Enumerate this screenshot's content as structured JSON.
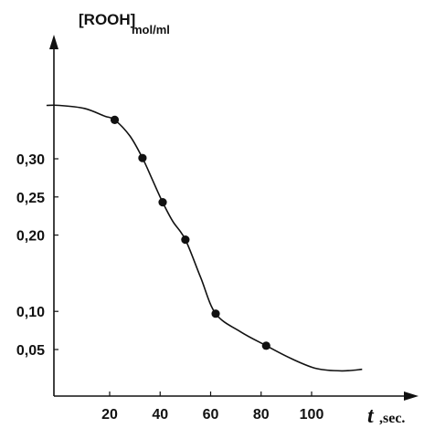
{
  "chart_data": {
    "type": "line",
    "ylabel": {
      "main": "[ROOH]",
      "unit": "mol/ml"
    },
    "xlabel": {
      "main": "t",
      "unit": ",sec."
    },
    "x_ticks": [
      {
        "value": 20,
        "label": "20"
      },
      {
        "value": 40,
        "label": "40"
      },
      {
        "value": 60,
        "label": "60"
      },
      {
        "value": 80,
        "label": "80"
      },
      {
        "value": 100,
        "label": "100"
      }
    ],
    "y_ticks": [
      {
        "value": 0.05,
        "label": "0,05"
      },
      {
        "value": 0.1,
        "label": "0,10"
      },
      {
        "value": 0.2,
        "label": "0,20"
      },
      {
        "value": 0.25,
        "label": "0,25"
      },
      {
        "value": 0.3,
        "label": "0,30"
      }
    ],
    "series": [
      {
        "points": [
          {
            "x": 22,
            "y": 0.351
          },
          {
            "x": 33,
            "y": 0.301
          },
          {
            "x": 41,
            "y": 0.243
          },
          {
            "x": 50,
            "y": 0.194
          },
          {
            "x": 62,
            "y": 0.097
          },
          {
            "x": 82,
            "y": 0.055
          }
        ],
        "curve": [
          {
            "x": -5,
            "y": 0.37
          },
          {
            "x": 0,
            "y": 0.37
          },
          {
            "x": 10,
            "y": 0.366
          },
          {
            "x": 18,
            "y": 0.356
          },
          {
            "x": 22,
            "y": 0.351
          },
          {
            "x": 28,
            "y": 0.33
          },
          {
            "x": 33,
            "y": 0.301
          },
          {
            "x": 37,
            "y": 0.272
          },
          {
            "x": 41,
            "y": 0.243
          },
          {
            "x": 45,
            "y": 0.218
          },
          {
            "x": 50,
            "y": 0.194
          },
          {
            "x": 56,
            "y": 0.145
          },
          {
            "x": 62,
            "y": 0.097
          },
          {
            "x": 72,
            "y": 0.073
          },
          {
            "x": 82,
            "y": 0.055
          },
          {
            "x": 92,
            "y": 0.038
          },
          {
            "x": 102,
            "y": 0.025
          },
          {
            "x": 112,
            "y": 0.022
          },
          {
            "x": 120,
            "y": 0.024
          }
        ]
      }
    ],
    "xlim": [
      -5,
      150
    ],
    "ylim": [
      -0.02,
      0.51
    ],
    "grid": false,
    "legend": "none",
    "colors": {
      "line": "#111111",
      "marker": "#111111",
      "axis": "#111111"
    }
  }
}
